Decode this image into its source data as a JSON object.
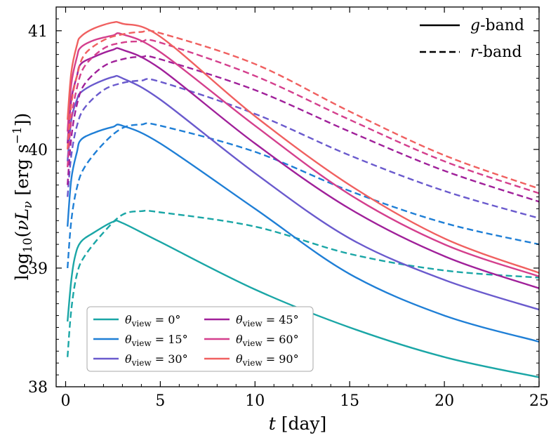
{
  "chart_data": {
    "type": "line",
    "xlabel": "t [day]",
    "ylabel": "log10(νLν [erg s−1])",
    "xlim": [
      -0.5,
      25
    ],
    "ylim": [
      38,
      41.2
    ],
    "xticks": [
      0,
      5,
      10,
      15,
      20,
      25
    ],
    "yticks": [
      38,
      39,
      40,
      41
    ],
    "grid": false,
    "style_legend": {
      "placement": "top-right",
      "entries": [
        {
          "label": "g-band",
          "dash": "solid"
        },
        {
          "label": "r-band",
          "dash": "dashed"
        }
      ]
    },
    "legend": {
      "placement": "lower-left",
      "columns": 2
    },
    "series": [
      {
        "name": "θview = 0°",
        "color": "#1aa6a6",
        "g": [
          [
            0.1,
            38.55
          ],
          [
            0.3,
            38.9
          ],
          [
            0.5,
            39.1
          ],
          [
            0.8,
            39.22
          ],
          [
            1.5,
            39.3
          ],
          [
            2.5,
            39.39
          ],
          [
            3.0,
            39.38
          ],
          [
            5,
            39.22
          ],
          [
            10,
            38.82
          ],
          [
            15,
            38.5
          ],
          [
            20,
            38.25
          ],
          [
            25,
            38.08
          ]
        ],
        "r": [
          [
            0.1,
            38.25
          ],
          [
            0.3,
            38.65
          ],
          [
            0.6,
            38.95
          ],
          [
            1.0,
            39.1
          ],
          [
            2.0,
            39.3
          ],
          [
            3.0,
            39.45
          ],
          [
            4.0,
            39.48
          ],
          [
            5,
            39.47
          ],
          [
            10,
            39.35
          ],
          [
            15,
            39.12
          ],
          [
            20,
            38.98
          ],
          [
            25,
            38.92
          ]
        ]
      },
      {
        "name": "θview = 15°",
        "color": "#1f7fd6",
        "g": [
          [
            0.1,
            39.35
          ],
          [
            0.3,
            39.75
          ],
          [
            0.6,
            39.98
          ],
          [
            0.8,
            40.08
          ],
          [
            1.5,
            40.14
          ],
          [
            2.5,
            40.19
          ],
          [
            3.0,
            40.2
          ],
          [
            5,
            40.05
          ],
          [
            10,
            39.5
          ],
          [
            15,
            38.95
          ],
          [
            20,
            38.6
          ],
          [
            25,
            38.38
          ]
        ],
        "r": [
          [
            0.1,
            39.0
          ],
          [
            0.3,
            39.4
          ],
          [
            0.6,
            39.68
          ],
          [
            1.0,
            39.85
          ],
          [
            2.0,
            40.05
          ],
          [
            3.0,
            40.18
          ],
          [
            4.0,
            40.21
          ],
          [
            5,
            40.2
          ],
          [
            10,
            39.98
          ],
          [
            15,
            39.65
          ],
          [
            20,
            39.38
          ],
          [
            25,
            39.2
          ]
        ]
      },
      {
        "name": "θview = 30°",
        "color": "#6a5acd",
        "g": [
          [
            0.1,
            39.9
          ],
          [
            0.3,
            40.25
          ],
          [
            0.6,
            40.42
          ],
          [
            0.8,
            40.48
          ],
          [
            1.5,
            40.55
          ],
          [
            2.5,
            40.61
          ],
          [
            3.0,
            40.6
          ],
          [
            5,
            40.42
          ],
          [
            10,
            39.8
          ],
          [
            15,
            39.25
          ],
          [
            20,
            38.9
          ],
          [
            25,
            38.65
          ]
        ],
        "r": [
          [
            0.1,
            39.6
          ],
          [
            0.3,
            39.95
          ],
          [
            0.6,
            40.2
          ],
          [
            1.0,
            40.35
          ],
          [
            2.0,
            40.5
          ],
          [
            3.0,
            40.56
          ],
          [
            4.0,
            40.58
          ],
          [
            5,
            40.57
          ],
          [
            10,
            40.3
          ],
          [
            15,
            39.95
          ],
          [
            20,
            39.65
          ],
          [
            25,
            39.42
          ]
        ]
      },
      {
        "name": "θview = 45°",
        "color": "#a0209a",
        "g": [
          [
            0.1,
            40.05
          ],
          [
            0.3,
            40.42
          ],
          [
            0.6,
            40.62
          ],
          [
            0.8,
            40.72
          ],
          [
            1.5,
            40.78
          ],
          [
            2.5,
            40.84
          ],
          [
            3.0,
            40.84
          ],
          [
            5,
            40.68
          ],
          [
            10,
            40.05
          ],
          [
            15,
            39.5
          ],
          [
            20,
            39.1
          ],
          [
            25,
            38.83
          ]
        ],
        "r": [
          [
            0.1,
            39.7
          ],
          [
            0.3,
            40.1
          ],
          [
            0.6,
            40.38
          ],
          [
            1.0,
            40.55
          ],
          [
            2.0,
            40.7
          ],
          [
            3.0,
            40.76
          ],
          [
            4.0,
            40.78
          ],
          [
            5,
            40.76
          ],
          [
            10,
            40.5
          ],
          [
            15,
            40.15
          ],
          [
            20,
            39.82
          ],
          [
            25,
            39.56
          ]
        ]
      },
      {
        "name": "θview = 60°",
        "color": "#d43f8d",
        "g": [
          [
            0.1,
            40.15
          ],
          [
            0.3,
            40.55
          ],
          [
            0.6,
            40.78
          ],
          [
            0.8,
            40.86
          ],
          [
            1.5,
            40.92
          ],
          [
            2.5,
            40.96
          ],
          [
            3.0,
            40.97
          ],
          [
            5,
            40.82
          ],
          [
            10,
            40.2
          ],
          [
            15,
            39.62
          ],
          [
            20,
            39.2
          ],
          [
            25,
            38.93
          ]
        ],
        "r": [
          [
            0.1,
            39.85
          ],
          [
            0.3,
            40.25
          ],
          [
            0.6,
            40.52
          ],
          [
            1.0,
            40.7
          ],
          [
            2.0,
            40.85
          ],
          [
            3.0,
            40.9
          ],
          [
            4.0,
            40.91
          ],
          [
            5,
            40.9
          ],
          [
            10,
            40.62
          ],
          [
            15,
            40.25
          ],
          [
            20,
            39.9
          ],
          [
            25,
            39.63
          ]
        ]
      },
      {
        "name": "θview = 90°",
        "color": "#f06060",
        "g": [
          [
            0.1,
            40.25
          ],
          [
            0.3,
            40.65
          ],
          [
            0.6,
            40.88
          ],
          [
            0.8,
            40.95
          ],
          [
            1.5,
            41.02
          ],
          [
            2.5,
            41.07
          ],
          [
            3.0,
            41.06
          ],
          [
            5,
            40.95
          ],
          [
            10,
            40.28
          ],
          [
            15,
            39.7
          ],
          [
            20,
            39.25
          ],
          [
            25,
            38.96
          ]
        ],
        "r": [
          [
            0.1,
            40.0
          ],
          [
            0.3,
            40.38
          ],
          [
            0.6,
            40.62
          ],
          [
            1.0,
            40.8
          ],
          [
            2.0,
            40.92
          ],
          [
            3.0,
            40.97
          ],
          [
            4.0,
            40.99
          ],
          [
            5,
            40.98
          ],
          [
            10,
            40.72
          ],
          [
            15,
            40.32
          ],
          [
            20,
            39.95
          ],
          [
            25,
            39.67
          ]
        ]
      }
    ]
  }
}
